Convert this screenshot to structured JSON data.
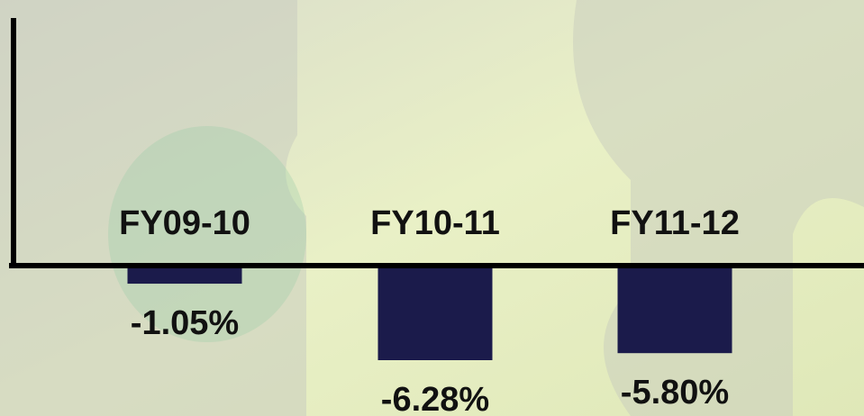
{
  "chart_data": {
    "type": "bar",
    "categories": [
      "FY09-10",
      "FY10-11",
      "FY11-12"
    ],
    "values": [
      -1.05,
      -6.28,
      -5.8
    ],
    "value_labels": [
      "-1.05%",
      "-6.28%",
      "-5.80%"
    ],
    "color": "#1b1b4b"
  }
}
